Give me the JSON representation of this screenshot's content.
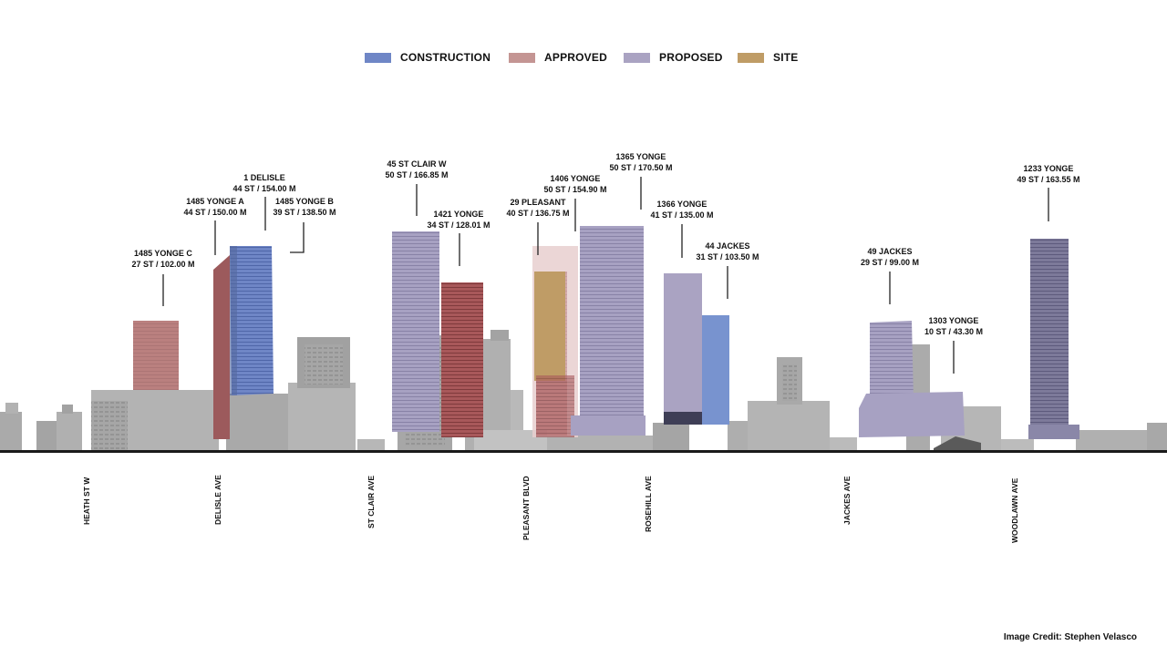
{
  "legend": [
    {
      "label": "CONSTRUCTION",
      "color": "#6f86c6"
    },
    {
      "label": "APPROVED",
      "color": "#c49593"
    },
    {
      "label": "PROPOSED",
      "color": "#aaa3c2"
    },
    {
      "label": "SITE",
      "color": "#bf9c66"
    }
  ],
  "projects": [
    {
      "name": "1485 YONGE C",
      "detail": "27 ST / 102.00 M",
      "status": "APPROVED"
    },
    {
      "name": "1485 YONGE A",
      "detail": "44 ST / 150.00 M",
      "status": "APPROVED"
    },
    {
      "name": "1 DELISLE",
      "detail": "44 ST / 154.00 M",
      "status": "CONSTRUCTION"
    },
    {
      "name": "1485 YONGE B",
      "detail": "39 ST / 138.50 M",
      "status": "APPROVED"
    },
    {
      "name": "45 ST CLAIR W",
      "detail": "50 ST / 166.85 M",
      "status": "PROPOSED"
    },
    {
      "name": "1421 YONGE",
      "detail": "34 ST / 128.01 M",
      "status": "APPROVED"
    },
    {
      "name": "29 PLEASANT",
      "detail": "40 ST / 136.75 M",
      "status": "SITE"
    },
    {
      "name": "1406 YONGE",
      "detail": "50 ST / 154.90 M",
      "status": "APPROVED"
    },
    {
      "name": "1365 YONGE",
      "detail": "50 ST / 170.50 M",
      "status": "PROPOSED"
    },
    {
      "name": "1366 YONGE",
      "detail": "41 ST / 135.00 M",
      "status": "PROPOSED"
    },
    {
      "name": "44 JACKES",
      "detail": "31 ST / 103.50 M",
      "status": "CONSTRUCTION"
    },
    {
      "name": "49 JACKES",
      "detail": "29 ST / 99.00 M",
      "status": "PROPOSED"
    },
    {
      "name": "1303 YONGE",
      "detail": "10 ST / 43.30 M",
      "status": "PROPOSED"
    },
    {
      "name": "1233 YONGE",
      "detail": "49 ST / 163.55 M",
      "status": "PROPOSED"
    }
  ],
  "streets": [
    "HEATH ST W",
    "DELISLE AVE",
    "ST CLAIR AVE",
    "PLEASANT BLVD",
    "ROSEHILL AVE",
    "JACKES AVE",
    "WOODLAWN AVE"
  ],
  "credit": "Image Credit: Stephen Velasco"
}
